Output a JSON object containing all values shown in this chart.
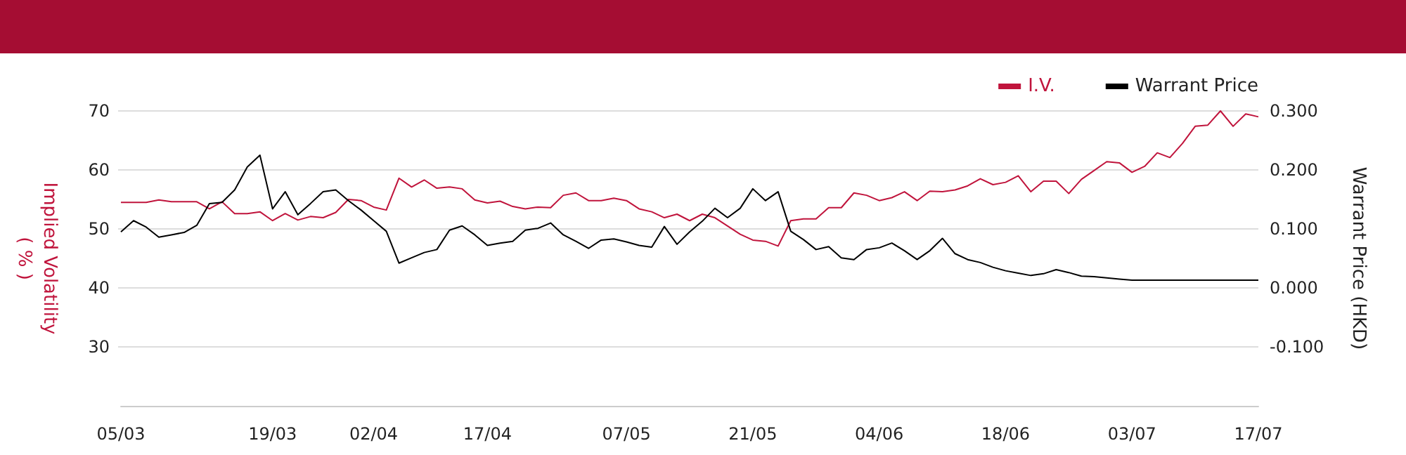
{
  "chart_data": {
    "type": "line",
    "ylabel": "Implied Volatility\n( % )",
    "y2label": "Warrant Price (HKD)",
    "categories": [
      "05/03",
      null,
      null,
      null,
      null,
      null,
      null,
      null,
      null,
      null,
      null,
      null,
      "19/03",
      null,
      null,
      null,
      null,
      null,
      null,
      null,
      "02/04",
      null,
      null,
      null,
      null,
      null,
      null,
      null,
      null,
      "17/04",
      null,
      null,
      null,
      null,
      null,
      null,
      null,
      null,
      null,
      null,
      "07/05",
      null,
      null,
      null,
      null,
      null,
      null,
      null,
      null,
      null,
      "21/05",
      null,
      null,
      null,
      null,
      null,
      null,
      null,
      null,
      null,
      "04/06",
      null,
      null,
      null,
      null,
      null,
      null,
      null,
      null,
      null,
      "18/06",
      null,
      null,
      null,
      null,
      null,
      null,
      null,
      null,
      null,
      "03/07",
      null,
      null,
      null,
      null,
      null,
      null,
      null,
      null,
      null,
      "17/07"
    ],
    "series": [
      {
        "name": "I.V.",
        "color": "#c0143c",
        "values": [
          54.5,
          54.5,
          54.5,
          54.9,
          54.6,
          54.6,
          54.6,
          53.4,
          54.6,
          52.6,
          52.6,
          52.9,
          51.4,
          52.6,
          51.5,
          52.1,
          51.9,
          52.8,
          55.0,
          54.8,
          53.7,
          53.2,
          58.6,
          57.1,
          58.3,
          56.9,
          57.1,
          56.8,
          54.9,
          54.4,
          54.7,
          53.8,
          53.4,
          53.7,
          53.6,
          55.7,
          56.1,
          54.8,
          54.8,
          55.2,
          54.8,
          53.4,
          52.9,
          51.9,
          52.5,
          51.4,
          52.5,
          51.9,
          50.5,
          49.1,
          48.1,
          47.9,
          47.1,
          51.4,
          51.7,
          51.7,
          53.6,
          53.6,
          56.1,
          55.7,
          54.8,
          55.3,
          56.3,
          54.8,
          56.4,
          56.3,
          56.6,
          57.3,
          58.5,
          57.5,
          57.9,
          59.0,
          56.3,
          58.1,
          58.1,
          56.0,
          58.4,
          59.9,
          61.4,
          61.2,
          59.6,
          60.6,
          62.9,
          62.1,
          64.5,
          67.4,
          67.6,
          70.0,
          67.4,
          69.5,
          69.0
        ]
      },
      {
        "name": "Warrant Price",
        "color": "#000000",
        "axis": "y2",
        "values": [
          0.095,
          0.114,
          0.103,
          0.086,
          0.09,
          0.094,
          0.106,
          0.143,
          0.145,
          0.166,
          0.205,
          0.225,
          0.134,
          0.163,
          0.124,
          0.143,
          0.163,
          0.166,
          0.148,
          0.132,
          0.114,
          0.096,
          0.042,
          0.051,
          0.06,
          0.065,
          0.098,
          0.105,
          0.09,
          0.072,
          0.076,
          0.079,
          0.098,
          0.101,
          0.11,
          0.09,
          0.079,
          0.067,
          0.081,
          0.083,
          0.078,
          0.072,
          0.069,
          0.104,
          0.074,
          0.095,
          0.113,
          0.135,
          0.119,
          0.135,
          0.168,
          0.148,
          0.163,
          0.096,
          0.082,
          0.065,
          0.07,
          0.051,
          0.048,
          0.065,
          0.068,
          0.076,
          0.063,
          0.048,
          0.063,
          0.084,
          0.058,
          0.048,
          0.043,
          0.035,
          0.029,
          0.025,
          0.021,
          0.024,
          0.031,
          0.026,
          0.02,
          0.019,
          0.017,
          0.015,
          0.013,
          0.013,
          0.013,
          0.013,
          0.013,
          0.013,
          0.013,
          0.013,
          0.013,
          0.013,
          0.013
        ]
      }
    ],
    "ylim": [
      20,
      70
    ],
    "yticks": [
      30,
      40,
      50,
      60,
      70
    ],
    "y2lim": [
      -0.2,
      0.3
    ],
    "y2ticks": [
      {
        "value": -0.1,
        "label": "-0.100"
      },
      {
        "value": 0,
        "label": "0.000"
      },
      {
        "value": 0.1,
        "label": "0.100"
      },
      {
        "value": 0.2,
        "label": "0.200"
      },
      {
        "value": 0.3,
        "label": "0.300"
      }
    ],
    "grid": "y",
    "legend": "top right",
    "marker": "none",
    "line_style": "solid"
  }
}
